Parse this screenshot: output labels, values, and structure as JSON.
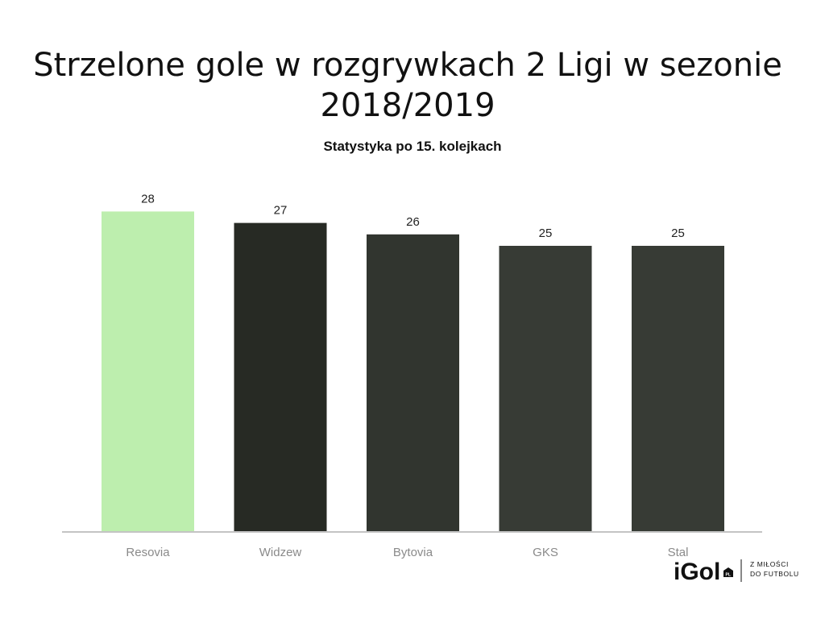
{
  "colors": {
    "highlight": "#bdeeae",
    "bars": [
      "#bdeeae",
      "#272a24",
      "#31352f",
      "#373b35",
      "#373b35"
    ],
    "axis": "#c4c4c4"
  },
  "logo": {
    "wordmark": "iGol",
    "badge": "PL",
    "tagline_line1": "Z MIŁOŚCI",
    "tagline_line2": "DO FUTBOLU"
  },
  "chart_data": {
    "type": "bar",
    "title": "Strzelone gole w rozgrywkach 2 Ligi w sezonie 2018/2019",
    "subtitle": "Statystyka po 15. kolejkach",
    "categories": [
      "Resovia",
      "Widzew",
      "Bytovia",
      "GKS",
      "Stal"
    ],
    "values": [
      28,
      27,
      26,
      25,
      25
    ],
    "data_labels": [
      "28",
      "27",
      "26",
      "25",
      "25"
    ],
    "xlabel": "",
    "ylabel": "",
    "ylim": [
      0,
      28
    ],
    "grid": false,
    "legend": "none"
  }
}
